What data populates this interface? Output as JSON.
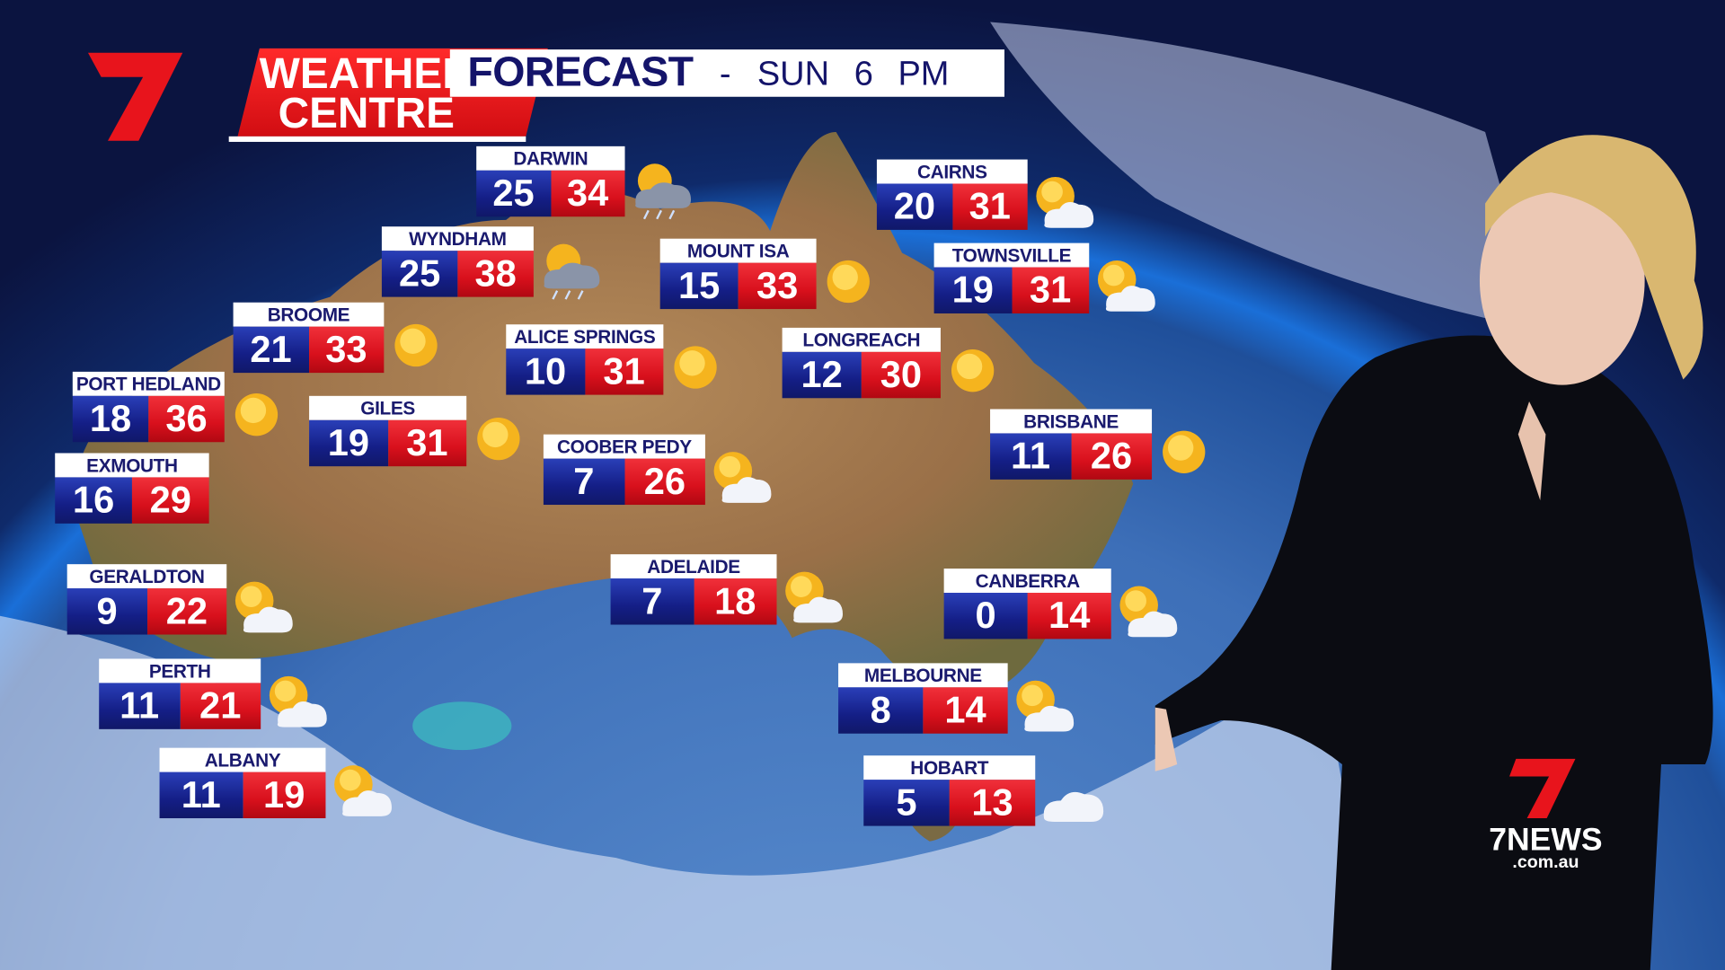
{
  "branding": {
    "logo_line1": "WEATHER",
    "logo_line2": "CENTRE",
    "channel_logo": "7NEWS",
    "channel_domain": ".com.au"
  },
  "header": {
    "title": "FORECAST",
    "separator": "-",
    "day_time": "SUN 6 PM"
  },
  "colors": {
    "low_temp": "#1a228f",
    "high_temp": "#dc1420",
    "label_text": "#1a1a6e",
    "brand_red": "#e8141c"
  },
  "cities": [
    {
      "name": "DARWIN",
      "low": "25",
      "high": "34",
      "icon": "storm-icon"
    },
    {
      "name": "WYNDHAM",
      "low": "25",
      "high": "38",
      "icon": "storm-icon"
    },
    {
      "name": "BROOME",
      "low": "21",
      "high": "33",
      "icon": "sun-icon"
    },
    {
      "name": "PORT HEDLAND",
      "low": "18",
      "high": "36",
      "icon": "sun-icon"
    },
    {
      "name": "EXMOUTH",
      "low": "16",
      "high": "29",
      "icon": ""
    },
    {
      "name": "GILES",
      "low": "19",
      "high": "31",
      "icon": "sun-icon"
    },
    {
      "name": "ALICE SPRINGS",
      "low": "10",
      "high": "31",
      "icon": "sun-icon"
    },
    {
      "name": "MOUNT ISA",
      "low": "15",
      "high": "33",
      "icon": "sun-icon"
    },
    {
      "name": "CAIRNS",
      "low": "20",
      "high": "31",
      "icon": "sun-cloud-icon"
    },
    {
      "name": "TOWNSVILLE",
      "low": "19",
      "high": "31",
      "icon": "sun-cloud-icon"
    },
    {
      "name": "LONGREACH",
      "low": "12",
      "high": "30",
      "icon": "sun-icon"
    },
    {
      "name": "COOBER PEDY",
      "low": "7",
      "high": "26",
      "icon": "sun-cloud-icon"
    },
    {
      "name": "BRISBANE",
      "low": "11",
      "high": "26",
      "icon": "sun-icon"
    },
    {
      "name": "GERALDTON",
      "low": "9",
      "high": "22",
      "icon": "sun-cloud-icon"
    },
    {
      "name": "ADELAIDE",
      "low": "7",
      "high": "18",
      "icon": "sun-cloud-icon"
    },
    {
      "name": "CANBERRA",
      "low": "0",
      "high": "14",
      "icon": "sun-cloud-icon"
    },
    {
      "name": "PERTH",
      "low": "11",
      "high": "21",
      "icon": "sun-cloud-icon"
    },
    {
      "name": "MELBOURNE",
      "low": "8",
      "high": "14",
      "icon": "sun-cloud-icon"
    },
    {
      "name": "ALBANY",
      "low": "11",
      "high": "19",
      "icon": "sun-cloud-icon"
    },
    {
      "name": "HOBART",
      "low": "5",
      "high": "13",
      "icon": "cloud-icon"
    }
  ]
}
